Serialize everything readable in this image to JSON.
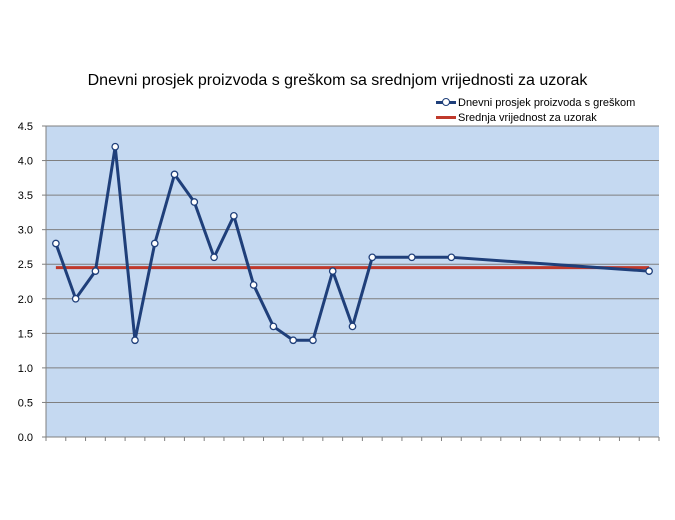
{
  "chart_data": {
    "type": "line",
    "title": "Dnevni prosjek proizvoda s greškom sa srednjom vrijednosti za uzorak",
    "xlabel": "",
    "ylabel": "",
    "ylim": [
      0,
      4.5
    ],
    "yticks": [
      "0.0",
      "0.5",
      "1.0",
      "1.5",
      "2.0",
      "2.5",
      "3.0",
      "3.5",
      "4.0",
      "4.5"
    ],
    "grid": true,
    "legend_position": "top-right",
    "x": [
      1,
      2,
      3,
      4,
      5,
      6,
      7,
      8,
      9,
      10,
      11,
      12,
      13,
      14,
      15,
      16,
      17,
      18,
      19,
      20,
      21,
      22,
      23,
      24,
      25,
      26,
      27,
      28,
      29,
      30,
      31
    ],
    "series": [
      {
        "name": "Dnevni prosjek proizvoda s greškom",
        "color": "#1f3f7a",
        "x": [
          1,
          2,
          3,
          4,
          5,
          6,
          7,
          8,
          9,
          10,
          11,
          12,
          13,
          14,
          15,
          16,
          17,
          19,
          21,
          31
        ],
        "values": [
          2.8,
          2.0,
          2.4,
          4.2,
          1.4,
          2.8,
          3.8,
          3.4,
          2.6,
          3.2,
          2.2,
          1.6,
          1.4,
          1.4,
          2.4,
          1.6,
          2.6,
          2.6,
          2.6,
          2.4
        ]
      },
      {
        "name": "Srednja vrijednost za uzorak",
        "color": "#c0392b",
        "value": 2.45
      }
    ]
  },
  "colors": {
    "plot_background": "#c5d9f1",
    "gridline": "#7f7f7f"
  }
}
